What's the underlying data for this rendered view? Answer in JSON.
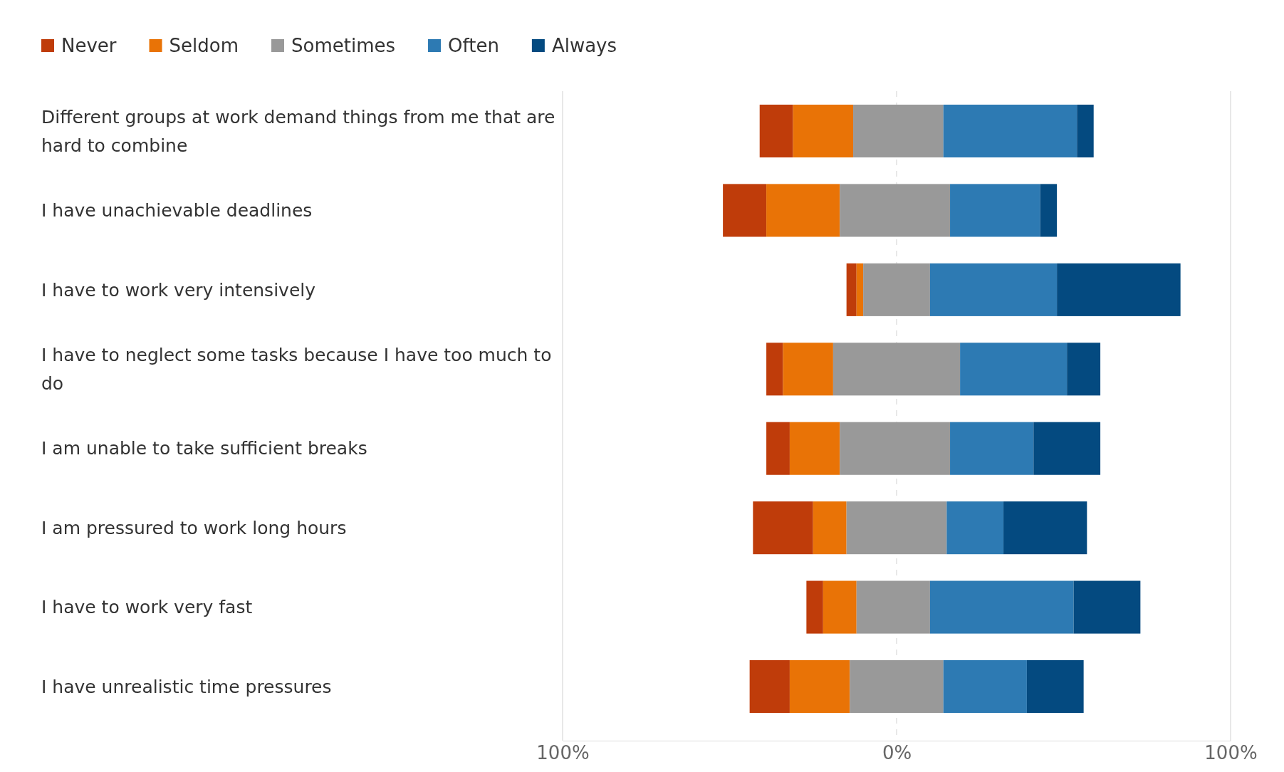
{
  "chart_data": {
    "type": "bar",
    "orientation": "horizontal",
    "categories": [
      "Different groups at work demand things from me that are hard to combine",
      "I have unachievable deadlines",
      "I have to work very intensively",
      "I have to neglect some tasks because I have too much to do",
      "I am unable to take sufficient breaks",
      "I am pressured to work long hours",
      "I have to work very fast",
      "I have unrealistic time pressures"
    ],
    "series": [
      {
        "name": "Never",
        "color": "#bf3c0a",
        "base": [
          -41,
          -52,
          -15,
          -39,
          -39,
          -43,
          -27,
          -44
        ],
        "values": [
          10,
          13,
          3,
          5,
          7,
          18,
          5,
          12
        ]
      },
      {
        "name": "Seldom",
        "color": "#e97306",
        "base": [
          -31,
          -39,
          -12,
          -34,
          -32,
          -25,
          -22,
          -32
        ],
        "values": [
          18,
          22,
          2,
          15,
          15,
          10,
          10,
          18
        ]
      },
      {
        "name": "Sometimes",
        "color": "#999999",
        "base": [
          -13,
          -17,
          -10,
          -19,
          -17,
          -15,
          -12,
          -14
        ],
        "values": [
          27,
          33,
          20,
          38,
          33,
          30,
          22,
          28
        ]
      },
      {
        "name": "Often",
        "color": "#2d7ab3",
        "base": [
          14,
          16,
          10,
          19,
          16,
          15,
          10,
          14
        ],
        "values": [
          40,
          27,
          38,
          32,
          25,
          17,
          43,
          25
        ]
      },
      {
        "name": "Always",
        "color": "#044a80",
        "base": [
          54,
          43,
          48,
          51,
          41,
          32,
          53,
          39
        ],
        "values": [
          5,
          5,
          37,
          10,
          20,
          25,
          20,
          17
        ]
      }
    ],
    "xlim": [
      -100,
      100
    ],
    "xticks": [
      {
        "value": -100,
        "label": "100%"
      },
      {
        "value": 0,
        "label": "0%"
      },
      {
        "value": 100,
        "label": "100%"
      }
    ],
    "grid": "x",
    "legend": "top left"
  }
}
